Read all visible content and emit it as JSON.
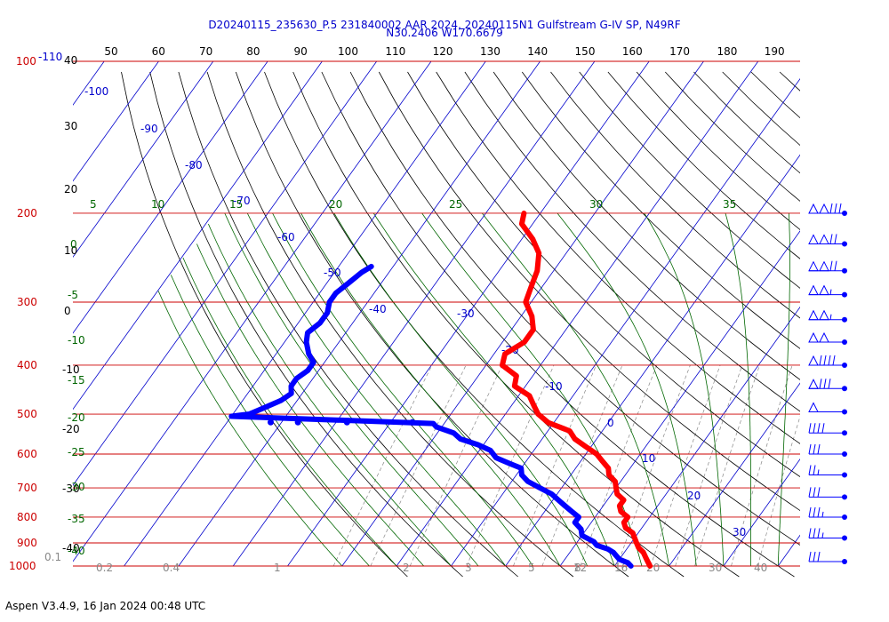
{
  "header": {
    "title_line1": "D20240115_235630_P.5 231840002 AAR 2024, 20240115N1 Gulfstream G-IV SP, N49RF",
    "title_line2": "N30.2406 W170.6679"
  },
  "footer": {
    "text": "Aspen V3.4.9, 16 Jan 2024  00:48 UTC"
  },
  "chart_data": {
    "type": "line",
    "chart_kind": "skew-T log-P sounding",
    "colors": {
      "temperature": "#ff0000",
      "dewpoint": "#0000ff",
      "isobar": "#cc0000",
      "isotherm": "#0000cc",
      "dry_adiabat": "#000000",
      "moist_adiabat": "#006600",
      "mixing_ratio": "#888888",
      "axis_text": "#000000",
      "pressure_label": "#cc0000"
    },
    "pressure_labels": [
      {
        "p": 100,
        "text": "100"
      },
      {
        "p": 200,
        "text": "200"
      },
      {
        "p": 300,
        "text": "300"
      },
      {
        "p": 400,
        "text": "400"
      },
      {
        "p": 500,
        "text": "500"
      },
      {
        "p": 600,
        "text": "600"
      },
      {
        "p": 700,
        "text": "700"
      },
      {
        "p": 800,
        "text": "800"
      },
      {
        "p": 900,
        "text": "900"
      },
      {
        "p": 1000,
        "text": "1000"
      }
    ],
    "top_pressure_suffix": "-110",
    "top_axis_ticks": [
      "50",
      "60",
      "70",
      "80",
      "90",
      "100",
      "110",
      "120",
      "130",
      "140",
      "150",
      "160",
      "170",
      "180",
      "190"
    ],
    "top_axis_corner": "40",
    "left_axis_labels": [
      {
        "text": "30",
        "y": 140
      },
      {
        "text": "20",
        "y": 211
      },
      {
        "text": "10",
        "y": 280
      },
      {
        "text": "0",
        "y": 348
      },
      {
        "text": "-10",
        "y": 414
      },
      {
        "text": "-20",
        "y": 481
      },
      {
        "text": "-30",
        "y": 548
      },
      {
        "text": "-40",
        "y": 615
      }
    ],
    "isotherm_labels": [
      "-100",
      "-90",
      "-80",
      "-70",
      "-60",
      "-50",
      "-40",
      "-30",
      "-20",
      "-10",
      "0",
      "10",
      "20",
      "30"
    ],
    "green_top_labels": [
      "5",
      "10",
      "15",
      "20",
      "25",
      "30",
      "35"
    ],
    "green_left_labels": [
      "0",
      "-5",
      "-10",
      "-15",
      "-20",
      "-25",
      "-30",
      "-35",
      "-40"
    ],
    "bottom_labels": [
      "0.1",
      "0.2",
      "0.4",
      "1",
      "2",
      "3",
      "5",
      "8",
      "12",
      "16",
      "20",
      "30",
      "40"
    ],
    "temperature": {
      "name": "Temperature",
      "points": [
        {
          "p": 200,
          "t": -53.0
        },
        {
          "p": 210,
          "t": -52.0
        },
        {
          "p": 225,
          "t": -48.0
        },
        {
          "p": 240,
          "t": -45.0
        },
        {
          "p": 260,
          "t": -43.0
        },
        {
          "p": 280,
          "t": -42.0
        },
        {
          "p": 300,
          "t": -41.0
        },
        {
          "p": 320,
          "t": -38.0
        },
        {
          "p": 340,
          "t": -36.0
        },
        {
          "p": 360,
          "t": -36.0
        },
        {
          "p": 380,
          "t": -38.0
        },
        {
          "p": 400,
          "t": -37.0
        },
        {
          "p": 420,
          "t": -33.0
        },
        {
          "p": 440,
          "t": -32.0
        },
        {
          "p": 460,
          "t": -28.0
        },
        {
          "p": 480,
          "t": -26.0
        },
        {
          "p": 500,
          "t": -24.0
        },
        {
          "p": 520,
          "t": -21.0
        },
        {
          "p": 540,
          "t": -16.0
        },
        {
          "p": 560,
          "t": -14.0
        },
        {
          "p": 580,
          "t": -11.0
        },
        {
          "p": 600,
          "t": -8.0
        },
        {
          "p": 620,
          "t": -6.0
        },
        {
          "p": 640,
          "t": -4.0
        },
        {
          "p": 660,
          "t": -3.0
        },
        {
          "p": 680,
          "t": -1.0
        },
        {
          "p": 700,
          "t": 0.0
        },
        {
          "p": 720,
          "t": 1.0
        },
        {
          "p": 740,
          "t": 3.0
        },
        {
          "p": 760,
          "t": 3.0
        },
        {
          "p": 780,
          "t": 4.0
        },
        {
          "p": 800,
          "t": 6.0
        },
        {
          "p": 820,
          "t": 6.0
        },
        {
          "p": 840,
          "t": 7.0
        },
        {
          "p": 860,
          "t": 9.0
        },
        {
          "p": 880,
          "t": 10.0
        },
        {
          "p": 900,
          "t": 11.0
        },
        {
          "p": 920,
          "t": 12.0
        },
        {
          "p": 940,
          "t": 13.5
        },
        {
          "p": 960,
          "t": 14.5
        },
        {
          "p": 980,
          "t": 15.5
        },
        {
          "p": 1000,
          "t": 16.5
        }
      ]
    },
    "dewpoint": {
      "name": "Dewpoint",
      "points": [
        {
          "p": 255,
          "t": -74.0
        },
        {
          "p": 262,
          "t": -75.0
        },
        {
          "p": 275,
          "t": -76.0
        },
        {
          "p": 288,
          "t": -77.0
        },
        {
          "p": 300,
          "t": -77.0
        },
        {
          "p": 315,
          "t": -76.0
        },
        {
          "p": 330,
          "t": -76.0
        },
        {
          "p": 345,
          "t": -77.0
        },
        {
          "p": 360,
          "t": -76.0
        },
        {
          "p": 380,
          "t": -74.0
        },
        {
          "p": 395,
          "t": -72.0
        },
        {
          "p": 410,
          "t": -72.0
        },
        {
          "p": 425,
          "t": -73.0
        },
        {
          "p": 440,
          "t": -73.0
        },
        {
          "p": 455,
          "t": -72.0
        },
        {
          "p": 470,
          "t": -73.0
        },
        {
          "p": 485,
          "t": -75.0
        },
        {
          "p": 500,
          "t": -77.0
        },
        {
          "p": 505,
          "t": -80.0
        },
        {
          "p": 522,
          "t": -42.0
        },
        {
          "p": 530,
          "t": -41.0
        },
        {
          "p": 545,
          "t": -37.0
        },
        {
          "p": 560,
          "t": -35.0
        },
        {
          "p": 575,
          "t": -31.0
        },
        {
          "p": 590,
          "t": -28.0
        },
        {
          "p": 610,
          "t": -26.0
        },
        {
          "p": 625,
          "t": -23.0
        },
        {
          "p": 640,
          "t": -20.0
        },
        {
          "p": 660,
          "t": -19.0
        },
        {
          "p": 680,
          "t": -17.0
        },
        {
          "p": 700,
          "t": -14.0
        },
        {
          "p": 720,
          "t": -11.0
        },
        {
          "p": 740,
          "t": -9.0
        },
        {
          "p": 760,
          "t": -7.0
        },
        {
          "p": 780,
          "t": -5.0
        },
        {
          "p": 800,
          "t": -3.0
        },
        {
          "p": 820,
          "t": -3.0
        },
        {
          "p": 845,
          "t": -1.0
        },
        {
          "p": 870,
          "t": 0.0
        },
        {
          "p": 895,
          "t": 3.0
        },
        {
          "p": 910,
          "t": 4.0
        },
        {
          "p": 925,
          "t": 6.5
        },
        {
          "p": 940,
          "t": 8.0
        },
        {
          "p": 955,
          "t": 9.0
        },
        {
          "p": 970,
          "t": 10.0
        },
        {
          "p": 985,
          "t": 12.0
        },
        {
          "p": 1000,
          "t": 13.0
        }
      ]
    },
    "stray_dewpoint_points": [
      {
        "p": 519,
        "t": -72.0
      },
      {
        "p": 519,
        "t": -67.0
      },
      {
        "p": 519,
        "t": -58.0
      },
      {
        "p": 519,
        "t": -46.0
      }
    ],
    "wind_barbs": [
      {
        "p": 200,
        "dir": 270,
        "speed": 130
      },
      {
        "p": 230,
        "dir": 270,
        "speed": 120
      },
      {
        "p": 260,
        "dir": 270,
        "speed": 120
      },
      {
        "p": 290,
        "dir": 270,
        "speed": 105
      },
      {
        "p": 325,
        "dir": 270,
        "speed": 105
      },
      {
        "p": 360,
        "dir": 270,
        "speed": 100
      },
      {
        "p": 400,
        "dir": 270,
        "speed": 90
      },
      {
        "p": 445,
        "dir": 270,
        "speed": 80
      },
      {
        "p": 495,
        "dir": 270,
        "speed": 50
      },
      {
        "p": 545,
        "dir": 265,
        "speed": 40
      },
      {
        "p": 600,
        "dir": 255,
        "speed": 30
      },
      {
        "p": 660,
        "dir": 250,
        "speed": 25
      },
      {
        "p": 730,
        "dir": 250,
        "speed": 30
      },
      {
        "p": 800,
        "dir": 250,
        "speed": 35
      },
      {
        "p": 880,
        "dir": 250,
        "speed": 35
      },
      {
        "p": 980,
        "dir": 260,
        "speed": 30
      }
    ]
  }
}
